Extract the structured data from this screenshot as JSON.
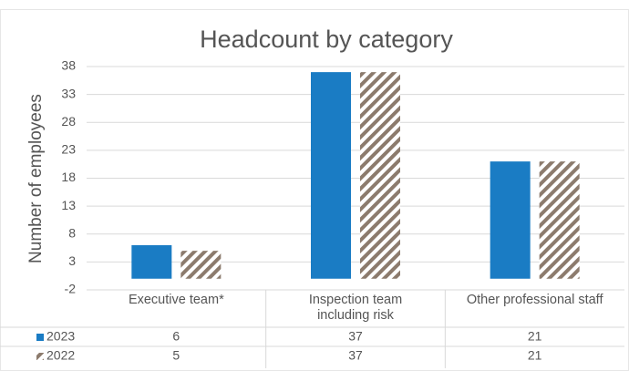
{
  "chart_data": {
    "type": "bar",
    "title": "Headcount by category",
    "y_label": "Number of employees",
    "categories": [
      "Executive team*",
      "Inspection team including risk",
      "Other professional staff"
    ],
    "series": [
      {
        "name": "2023",
        "color": "#1a7cc4",
        "hatch": false,
        "values": [
          6,
          37,
          21
        ]
      },
      {
        "name": "2022",
        "color": "#8c7b6d",
        "hatch": true,
        "values": [
          5,
          37,
          21
        ]
      }
    ],
    "ylim": [
      -2,
      38
    ],
    "yticks": [
      -2,
      3,
      8,
      13,
      18,
      23,
      28,
      33,
      38
    ],
    "grid": true,
    "data_table": true
  }
}
